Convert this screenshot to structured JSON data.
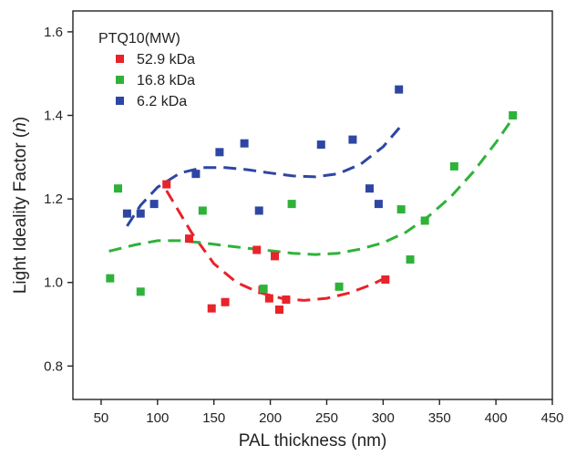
{
  "chart_data": {
    "type": "scatter",
    "xlabel": "PAL thickness (nm)",
    "ylabel": "Light Ideality Factor (n)",
    "ylabel_main": "Light Ideality Factor (",
    "ylabel_var": "n",
    "ylabel_close": ")",
    "xlim": [
      25,
      450
    ],
    "ylim": [
      0.72,
      1.65
    ],
    "xticks": [
      "50",
      "100",
      "150",
      "200",
      "250",
      "300",
      "350",
      "400",
      "450"
    ],
    "yticks": [
      "0.8",
      "1.0",
      "1.2",
      "1.4",
      "1.6"
    ],
    "grid": false,
    "legend": {
      "title": "PTQ10(MW)",
      "placement": "top-left"
    },
    "series": [
      {
        "name": "52.9 kDa",
        "color": "#e8232a",
        "points": [
          [
            108,
            1.235
          ],
          [
            128,
            1.105
          ],
          [
            148,
            0.938
          ],
          [
            160,
            0.953
          ],
          [
            188,
            1.078
          ],
          [
            193,
            0.982
          ],
          [
            199,
            0.962
          ],
          [
            204,
            1.063
          ],
          [
            208,
            0.935
          ],
          [
            214,
            0.959
          ],
          [
            302,
            1.007
          ]
        ],
        "fit": [
          [
            108,
            1.22
          ],
          [
            130,
            1.12
          ],
          [
            150,
            1.045
          ],
          [
            170,
            1.0
          ],
          [
            190,
            0.976
          ],
          [
            210,
            0.962
          ],
          [
            230,
            0.957
          ],
          [
            250,
            0.962
          ],
          [
            270,
            0.975
          ],
          [
            290,
            0.995
          ],
          [
            305,
            1.015
          ]
        ]
      },
      {
        "name": "16.8 kDa",
        "color": "#2fb23a",
        "points": [
          [
            58,
            1.01
          ],
          [
            65,
            1.225
          ],
          [
            85,
            0.978
          ],
          [
            140,
            1.172
          ],
          [
            194,
            0.985
          ],
          [
            219,
            1.188
          ],
          [
            261,
            0.99
          ],
          [
            316,
            1.175
          ],
          [
            324,
            1.055
          ],
          [
            337,
            1.148
          ],
          [
            363,
            1.278
          ],
          [
            415,
            1.4
          ]
        ],
        "fit": [
          [
            57,
            1.075
          ],
          [
            80,
            1.09
          ],
          [
            100,
            1.1
          ],
          [
            120,
            1.1
          ],
          [
            140,
            1.095
          ],
          [
            160,
            1.088
          ],
          [
            180,
            1.082
          ],
          [
            200,
            1.076
          ],
          [
            220,
            1.07
          ],
          [
            240,
            1.067
          ],
          [
            260,
            1.07
          ],
          [
            280,
            1.08
          ],
          [
            300,
            1.095
          ],
          [
            320,
            1.12
          ],
          [
            340,
            1.158
          ],
          [
            360,
            1.205
          ],
          [
            380,
            1.265
          ],
          [
            400,
            1.335
          ],
          [
            418,
            1.405
          ]
        ]
      },
      {
        "name": "6.2 kDa",
        "color": "#2e46a3",
        "points": [
          [
            73,
            1.165
          ],
          [
            85,
            1.165
          ],
          [
            97,
            1.188
          ],
          [
            134,
            1.26
          ],
          [
            155,
            1.312
          ],
          [
            177,
            1.333
          ],
          [
            190,
            1.172
          ],
          [
            245,
            1.33
          ],
          [
            273,
            1.342
          ],
          [
            288,
            1.225
          ],
          [
            296,
            1.188
          ],
          [
            314,
            1.462
          ]
        ],
        "fit": [
          [
            73,
            1.135
          ],
          [
            85,
            1.185
          ],
          [
            100,
            1.228
          ],
          [
            120,
            1.262
          ],
          [
            140,
            1.275
          ],
          [
            160,
            1.275
          ],
          [
            180,
            1.27
          ],
          [
            200,
            1.262
          ],
          [
            220,
            1.255
          ],
          [
            240,
            1.253
          ],
          [
            260,
            1.26
          ],
          [
            280,
            1.283
          ],
          [
            300,
            1.325
          ],
          [
            315,
            1.372
          ]
        ]
      }
    ]
  }
}
